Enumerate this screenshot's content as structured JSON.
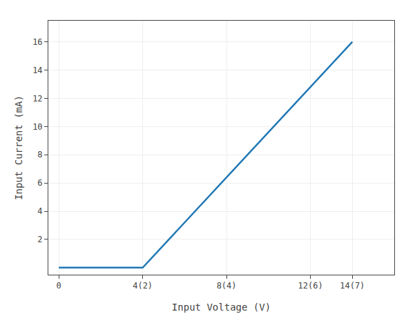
{
  "chart_data": {
    "type": "line",
    "xlabel": "Input Voltage (V)",
    "ylabel": "Input Current (mA)",
    "x": [
      0,
      4,
      14
    ],
    "values": [
      0,
      0,
      16
    ],
    "xlim": [
      -0.5,
      16.0
    ],
    "ylim": [
      -0.5,
      17.5
    ],
    "xticks": [
      0,
      {
        "value": 4,
        "label": "4(2)"
      },
      {
        "value": 8,
        "label": "8(4)"
      },
      {
        "value": 12,
        "label": "12(6)"
      },
      {
        "value": 14,
        "label": "14(7)"
      }
    ],
    "yticks": [
      2,
      4,
      6,
      8,
      10,
      12,
      14,
      16
    ],
    "grid": true
  }
}
